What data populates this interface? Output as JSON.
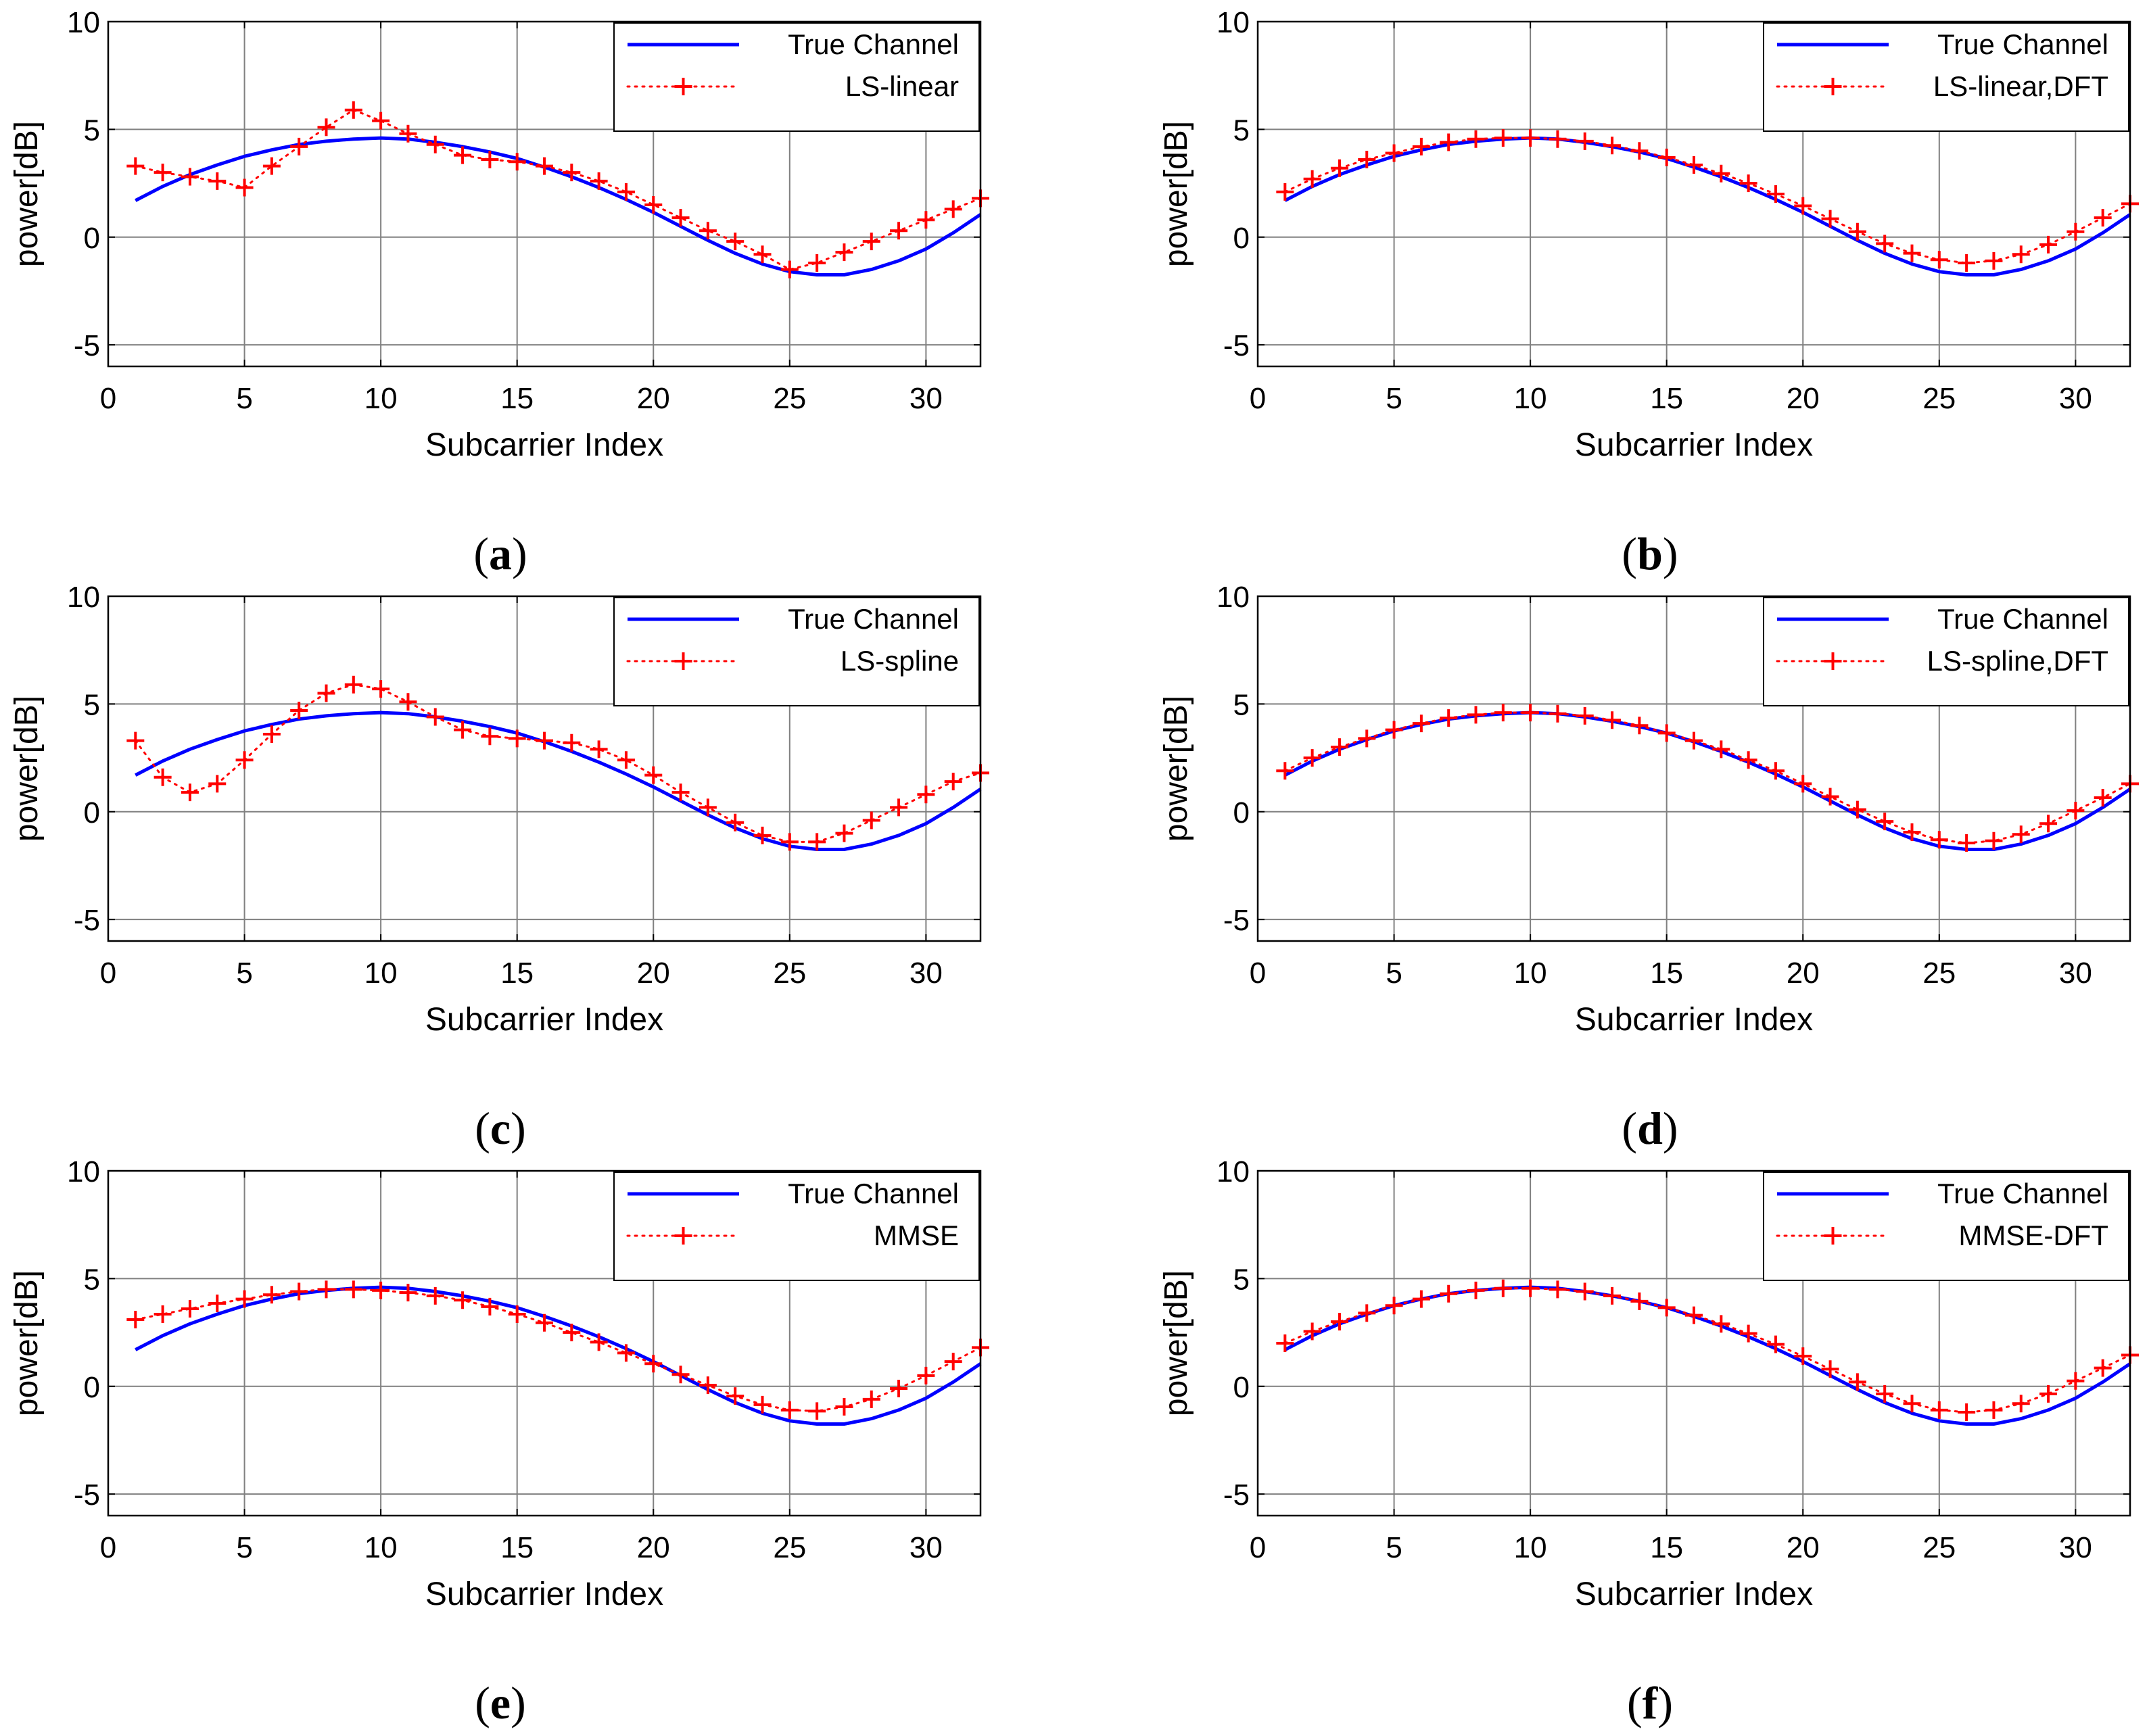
{
  "colors": {
    "true_channel": "#0000ff",
    "estimate": "#ff0000",
    "grid": "#808080",
    "axis": "#000000"
  },
  "chart_data": [
    {
      "type": "line",
      "panel": "a",
      "caption_label": "a",
      "xlabel": "Subcarrier Index",
      "ylabel": "power[dB]",
      "xlim": [
        0,
        32
      ],
      "ylim": [
        -6,
        10
      ],
      "xticks": [
        0,
        5,
        10,
        15,
        20,
        25,
        30
      ],
      "yticks": [
        -5,
        0,
        5,
        10
      ],
      "grid": true,
      "legend_position": "top-right",
      "series": [
        {
          "name": "True Channel",
          "style": "solid",
          "x": [
            1,
            2,
            3,
            4,
            5,
            6,
            7,
            8,
            9,
            10,
            11,
            12,
            13,
            14,
            15,
            16,
            17,
            18,
            19,
            20,
            21,
            22,
            23,
            24,
            25,
            26,
            27,
            28,
            29,
            30,
            31,
            32
          ],
          "y": [
            1.7,
            2.35,
            2.9,
            3.35,
            3.75,
            4.05,
            4.3,
            4.45,
            4.55,
            4.6,
            4.55,
            4.4,
            4.2,
            3.95,
            3.65,
            3.25,
            2.8,
            2.3,
            1.75,
            1.15,
            0.5,
            -0.15,
            -0.75,
            -1.25,
            -1.6,
            -1.75,
            -1.75,
            -1.5,
            -1.1,
            -0.55,
            0.2,
            1.05
          ]
        },
        {
          "name": "LS-linear",
          "style": "dotted-plus",
          "x": [
            1,
            2,
            3,
            4,
            5,
            6,
            7,
            8,
            9,
            10,
            11,
            12,
            13,
            14,
            15,
            16,
            17,
            18,
            19,
            20,
            21,
            22,
            23,
            24,
            25,
            26,
            27,
            28,
            29,
            30,
            31,
            32
          ],
          "y": [
            3.3,
            3.0,
            2.8,
            2.6,
            2.3,
            3.3,
            4.2,
            5.1,
            5.9,
            5.4,
            4.8,
            4.3,
            3.8,
            3.6,
            3.5,
            3.3,
            3.0,
            2.6,
            2.1,
            1.5,
            0.9,
            0.3,
            -0.2,
            -0.8,
            -1.5,
            -1.2,
            -0.7,
            -0.2,
            0.3,
            0.8,
            1.3,
            1.8
          ]
        }
      ]
    },
    {
      "type": "line",
      "panel": "b",
      "caption_label": "b",
      "xlabel": "Subcarrier Index",
      "ylabel": "power[dB]",
      "xlim": [
        0,
        32
      ],
      "ylim": [
        -6,
        10
      ],
      "xticks": [
        0,
        5,
        10,
        15,
        20,
        25,
        30
      ],
      "yticks": [
        -5,
        0,
        5,
        10
      ],
      "grid": true,
      "legend_position": "top-right",
      "series": [
        {
          "name": "True Channel",
          "style": "solid",
          "x": [
            1,
            2,
            3,
            4,
            5,
            6,
            7,
            8,
            9,
            10,
            11,
            12,
            13,
            14,
            15,
            16,
            17,
            18,
            19,
            20,
            21,
            22,
            23,
            24,
            25,
            26,
            27,
            28,
            29,
            30,
            31,
            32
          ],
          "y": [
            1.7,
            2.35,
            2.9,
            3.35,
            3.75,
            4.05,
            4.3,
            4.45,
            4.55,
            4.6,
            4.55,
            4.4,
            4.2,
            3.95,
            3.65,
            3.25,
            2.8,
            2.3,
            1.75,
            1.15,
            0.5,
            -0.15,
            -0.75,
            -1.25,
            -1.6,
            -1.75,
            -1.75,
            -1.5,
            -1.1,
            -0.55,
            0.2,
            1.05
          ]
        },
        {
          "name": "LS-linear,DFT",
          "style": "dotted-plus",
          "x": [
            1,
            2,
            3,
            4,
            5,
            6,
            7,
            8,
            9,
            10,
            11,
            12,
            13,
            14,
            15,
            16,
            17,
            18,
            19,
            20,
            21,
            22,
            23,
            24,
            25,
            26,
            27,
            28,
            29,
            30,
            31,
            32
          ],
          "y": [
            2.1,
            2.7,
            3.2,
            3.6,
            3.9,
            4.2,
            4.4,
            4.55,
            4.6,
            4.6,
            4.55,
            4.45,
            4.25,
            4.0,
            3.7,
            3.35,
            2.95,
            2.5,
            2.0,
            1.45,
            0.85,
            0.25,
            -0.3,
            -0.75,
            -1.05,
            -1.2,
            -1.1,
            -0.8,
            -0.35,
            0.25,
            0.9,
            1.55
          ]
        }
      ]
    },
    {
      "type": "line",
      "panel": "c",
      "caption_label": "c",
      "xlabel": "Subcarrier Index",
      "ylabel": "power[dB]",
      "xlim": [
        0,
        32
      ],
      "ylim": [
        -6,
        10
      ],
      "xticks": [
        0,
        5,
        10,
        15,
        20,
        25,
        30
      ],
      "yticks": [
        -5,
        0,
        5,
        10
      ],
      "grid": true,
      "legend_position": "top-right",
      "series": [
        {
          "name": "True Channel",
          "style": "solid",
          "x": [
            1,
            2,
            3,
            4,
            5,
            6,
            7,
            8,
            9,
            10,
            11,
            12,
            13,
            14,
            15,
            16,
            17,
            18,
            19,
            20,
            21,
            22,
            23,
            24,
            25,
            26,
            27,
            28,
            29,
            30,
            31,
            32
          ],
          "y": [
            1.7,
            2.35,
            2.9,
            3.35,
            3.75,
            4.05,
            4.3,
            4.45,
            4.55,
            4.6,
            4.55,
            4.4,
            4.2,
            3.95,
            3.65,
            3.25,
            2.8,
            2.3,
            1.75,
            1.15,
            0.5,
            -0.15,
            -0.75,
            -1.25,
            -1.6,
            -1.75,
            -1.75,
            -1.5,
            -1.1,
            -0.55,
            0.2,
            1.05
          ]
        },
        {
          "name": "LS-spline",
          "style": "dotted-plus",
          "x": [
            1,
            2,
            3,
            4,
            5,
            6,
            7,
            8,
            9,
            10,
            11,
            12,
            13,
            14,
            15,
            16,
            17,
            18,
            19,
            20,
            21,
            22,
            23,
            24,
            25,
            26,
            27,
            28,
            29,
            30,
            31,
            32
          ],
          "y": [
            3.3,
            1.6,
            0.9,
            1.3,
            2.4,
            3.6,
            4.7,
            5.5,
            5.9,
            5.7,
            5.1,
            4.4,
            3.8,
            3.5,
            3.4,
            3.3,
            3.2,
            2.9,
            2.4,
            1.7,
            0.9,
            0.2,
            -0.5,
            -1.1,
            -1.4,
            -1.4,
            -1.0,
            -0.4,
            0.2,
            0.8,
            1.4,
            1.8
          ]
        }
      ]
    },
    {
      "type": "line",
      "panel": "d",
      "caption_label": "d",
      "xlabel": "Subcarrier Index",
      "ylabel": "power[dB]",
      "xlim": [
        0,
        32
      ],
      "ylim": [
        -6,
        10
      ],
      "xticks": [
        0,
        5,
        10,
        15,
        20,
        25,
        30
      ],
      "yticks": [
        -5,
        0,
        5,
        10
      ],
      "grid": true,
      "legend_position": "top-right",
      "series": [
        {
          "name": "True Channel",
          "style": "solid",
          "x": [
            1,
            2,
            3,
            4,
            5,
            6,
            7,
            8,
            9,
            10,
            11,
            12,
            13,
            14,
            15,
            16,
            17,
            18,
            19,
            20,
            21,
            22,
            23,
            24,
            25,
            26,
            27,
            28,
            29,
            30,
            31,
            32
          ],
          "y": [
            1.7,
            2.35,
            2.9,
            3.35,
            3.75,
            4.05,
            4.3,
            4.45,
            4.55,
            4.6,
            4.55,
            4.4,
            4.2,
            3.95,
            3.65,
            3.25,
            2.8,
            2.3,
            1.75,
            1.15,
            0.5,
            -0.15,
            -0.75,
            -1.25,
            -1.6,
            -1.75,
            -1.75,
            -1.5,
            -1.1,
            -0.55,
            0.2,
            1.05
          ]
        },
        {
          "name": "LS-spline,DFT",
          "style": "dotted-plus",
          "x": [
            1,
            2,
            3,
            4,
            5,
            6,
            7,
            8,
            9,
            10,
            11,
            12,
            13,
            14,
            15,
            16,
            17,
            18,
            19,
            20,
            21,
            22,
            23,
            24,
            25,
            26,
            27,
            28,
            29,
            30,
            31,
            32
          ],
          "y": [
            1.9,
            2.5,
            3.0,
            3.4,
            3.8,
            4.1,
            4.35,
            4.5,
            4.6,
            4.6,
            4.55,
            4.45,
            4.25,
            4.0,
            3.65,
            3.3,
            2.9,
            2.4,
            1.9,
            1.3,
            0.7,
            0.1,
            -0.45,
            -0.95,
            -1.3,
            -1.45,
            -1.35,
            -1.05,
            -0.55,
            0.05,
            0.65,
            1.3
          ]
        }
      ]
    },
    {
      "type": "line",
      "panel": "e",
      "caption_label": "e",
      "xlabel": "Subcarrier Index",
      "ylabel": "power[dB]",
      "xlim": [
        0,
        32
      ],
      "ylim": [
        -6,
        10
      ],
      "xticks": [
        0,
        5,
        10,
        15,
        20,
        25,
        30
      ],
      "yticks": [
        -5,
        0,
        5,
        10
      ],
      "grid": true,
      "legend_position": "top-right",
      "series": [
        {
          "name": "True Channel",
          "style": "solid",
          "x": [
            1,
            2,
            3,
            4,
            5,
            6,
            7,
            8,
            9,
            10,
            11,
            12,
            13,
            14,
            15,
            16,
            17,
            18,
            19,
            20,
            21,
            22,
            23,
            24,
            25,
            26,
            27,
            28,
            29,
            30,
            31,
            32
          ],
          "y": [
            1.7,
            2.35,
            2.9,
            3.35,
            3.75,
            4.05,
            4.3,
            4.45,
            4.55,
            4.6,
            4.55,
            4.4,
            4.2,
            3.95,
            3.65,
            3.25,
            2.8,
            2.3,
            1.75,
            1.15,
            0.5,
            -0.15,
            -0.75,
            -1.25,
            -1.6,
            -1.75,
            -1.75,
            -1.5,
            -1.1,
            -0.55,
            0.2,
            1.05
          ]
        },
        {
          "name": "MMSE",
          "style": "dotted-plus",
          "x": [
            1,
            2,
            3,
            4,
            5,
            6,
            7,
            8,
            9,
            10,
            11,
            12,
            13,
            14,
            15,
            16,
            17,
            18,
            19,
            20,
            21,
            22,
            23,
            24,
            25,
            26,
            27,
            28,
            29,
            30,
            31,
            32
          ],
          "y": [
            3.1,
            3.35,
            3.6,
            3.85,
            4.05,
            4.25,
            4.4,
            4.5,
            4.5,
            4.45,
            4.35,
            4.2,
            4.0,
            3.7,
            3.35,
            2.95,
            2.5,
            2.05,
            1.55,
            1.05,
            0.55,
            0.05,
            -0.45,
            -0.85,
            -1.1,
            -1.15,
            -0.95,
            -0.6,
            -0.1,
            0.5,
            1.15,
            1.8
          ]
        }
      ]
    },
    {
      "type": "line",
      "panel": "f",
      "caption_label": "f",
      "xlabel": "Subcarrier Index",
      "ylabel": "power[dB]",
      "xlim": [
        0,
        32
      ],
      "ylim": [
        -6,
        10
      ],
      "xticks": [
        0,
        5,
        10,
        15,
        20,
        25,
        30
      ],
      "yticks": [
        -5,
        0,
        5,
        10
      ],
      "grid": true,
      "legend_position": "top-right",
      "series": [
        {
          "name": "True Channel",
          "style": "solid",
          "x": [
            1,
            2,
            3,
            4,
            5,
            6,
            7,
            8,
            9,
            10,
            11,
            12,
            13,
            14,
            15,
            16,
            17,
            18,
            19,
            20,
            21,
            22,
            23,
            24,
            25,
            26,
            27,
            28,
            29,
            30,
            31,
            32
          ],
          "y": [
            1.7,
            2.35,
            2.9,
            3.35,
            3.75,
            4.05,
            4.3,
            4.45,
            4.55,
            4.6,
            4.55,
            4.4,
            4.2,
            3.95,
            3.65,
            3.25,
            2.8,
            2.3,
            1.75,
            1.15,
            0.5,
            -0.15,
            -0.75,
            -1.25,
            -1.6,
            -1.75,
            -1.75,
            -1.5,
            -1.1,
            -0.55,
            0.2,
            1.05
          ]
        },
        {
          "name": "MMSE-DFT",
          "style": "dotted-plus",
          "x": [
            1,
            2,
            3,
            4,
            5,
            6,
            7,
            8,
            9,
            10,
            11,
            12,
            13,
            14,
            15,
            16,
            17,
            18,
            19,
            20,
            21,
            22,
            23,
            24,
            25,
            26,
            27,
            28,
            29,
            30,
            31,
            32
          ],
          "y": [
            2.0,
            2.55,
            3.0,
            3.4,
            3.75,
            4.05,
            4.3,
            4.45,
            4.55,
            4.55,
            4.5,
            4.4,
            4.2,
            3.95,
            3.65,
            3.3,
            2.9,
            2.45,
            1.95,
            1.4,
            0.8,
            0.2,
            -0.35,
            -0.8,
            -1.1,
            -1.2,
            -1.1,
            -0.8,
            -0.35,
            0.25,
            0.85,
            1.45
          ]
        }
      ]
    }
  ]
}
